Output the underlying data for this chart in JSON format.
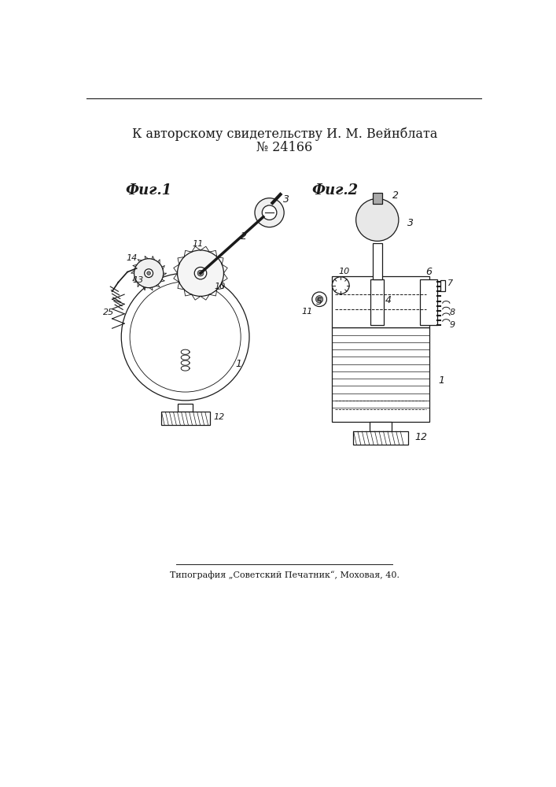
{
  "title_line1": "К авторскому свидетельству И. М. Вейнблата",
  "title_line2": "№ 24166",
  "footer": "Типография „Советский Печатник“, Моховая, 40.",
  "fig1_label": "Фиг.1",
  "fig2_label": "Фиг.2",
  "bg_color": "#ffffff",
  "line_color": "#1a1a1a"
}
